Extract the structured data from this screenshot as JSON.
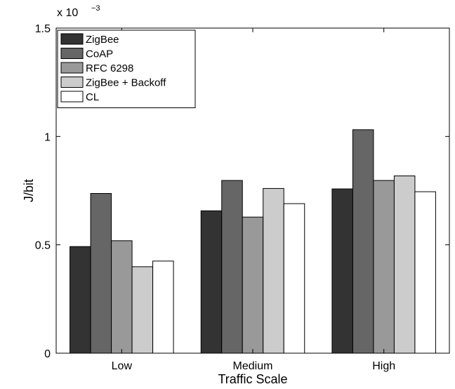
{
  "chart_data": {
    "type": "bar",
    "xlabel": "Traffic Scale",
    "ylabel": "J/bit",
    "ylim": [
      0,
      0.0015
    ],
    "yticks": [
      0,
      0.0005,
      0.001,
      0.0015
    ],
    "ytick_labels": [
      "0",
      "0.5",
      "1",
      "1.5"
    ],
    "y_multiplier_base": "x 10",
    "y_multiplier_exp": "−3",
    "categories": [
      "Low",
      "Medium",
      "High"
    ],
    "legend_position": "top-left",
    "grid": false,
    "series": [
      {
        "name": "ZigBee",
        "color": "#333333",
        "values": [
          0.000492,
          0.000657,
          0.000758
        ]
      },
      {
        "name": "CoAP",
        "color": "#666666",
        "values": [
          0.000737,
          0.000797,
          0.001031
        ]
      },
      {
        "name": "RFC 6298",
        "color": "#999999",
        "values": [
          0.000519,
          0.000628,
          0.000797
        ]
      },
      {
        "name": "ZigBee + Backoff",
        "color": "#cccccc",
        "values": [
          0.000399,
          0.00076,
          0.000818
        ]
      },
      {
        "name": "CL",
        "color": "#ffffff",
        "values": [
          0.000425,
          0.00069,
          0.000745
        ]
      }
    ]
  }
}
